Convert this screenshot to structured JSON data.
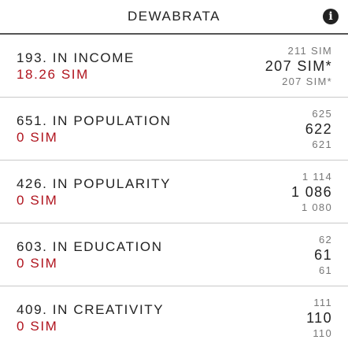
{
  "header": {
    "title": "DEWABRATA",
    "info_icon": "info-icon"
  },
  "rows": [
    {
      "rank_label": "193. IN INCOME",
      "value": "18.26 SIM",
      "prev": "211 SIM",
      "current": "207 SIM*",
      "next": "207 SIM*"
    },
    {
      "rank_label": "651. IN POPULATION",
      "value": "0 SIM",
      "prev": "625",
      "current": "622",
      "next": "621"
    },
    {
      "rank_label": "426. IN POPULARITY",
      "value": "0 SIM",
      "prev": "1 114",
      "current": "1 086",
      "next": "1 080"
    },
    {
      "rank_label": "603. IN EDUCATION",
      "value": "0 SIM",
      "prev": "62",
      "current": "61",
      "next": "61"
    },
    {
      "rank_label": "409. IN CREATIVITY",
      "value": "0 SIM",
      "prev": "111",
      "current": "110",
      "next": "110"
    }
  ],
  "colors": {
    "value_red": "#b0141e",
    "divider": "#c9c9c9",
    "header_border": "#555555"
  }
}
